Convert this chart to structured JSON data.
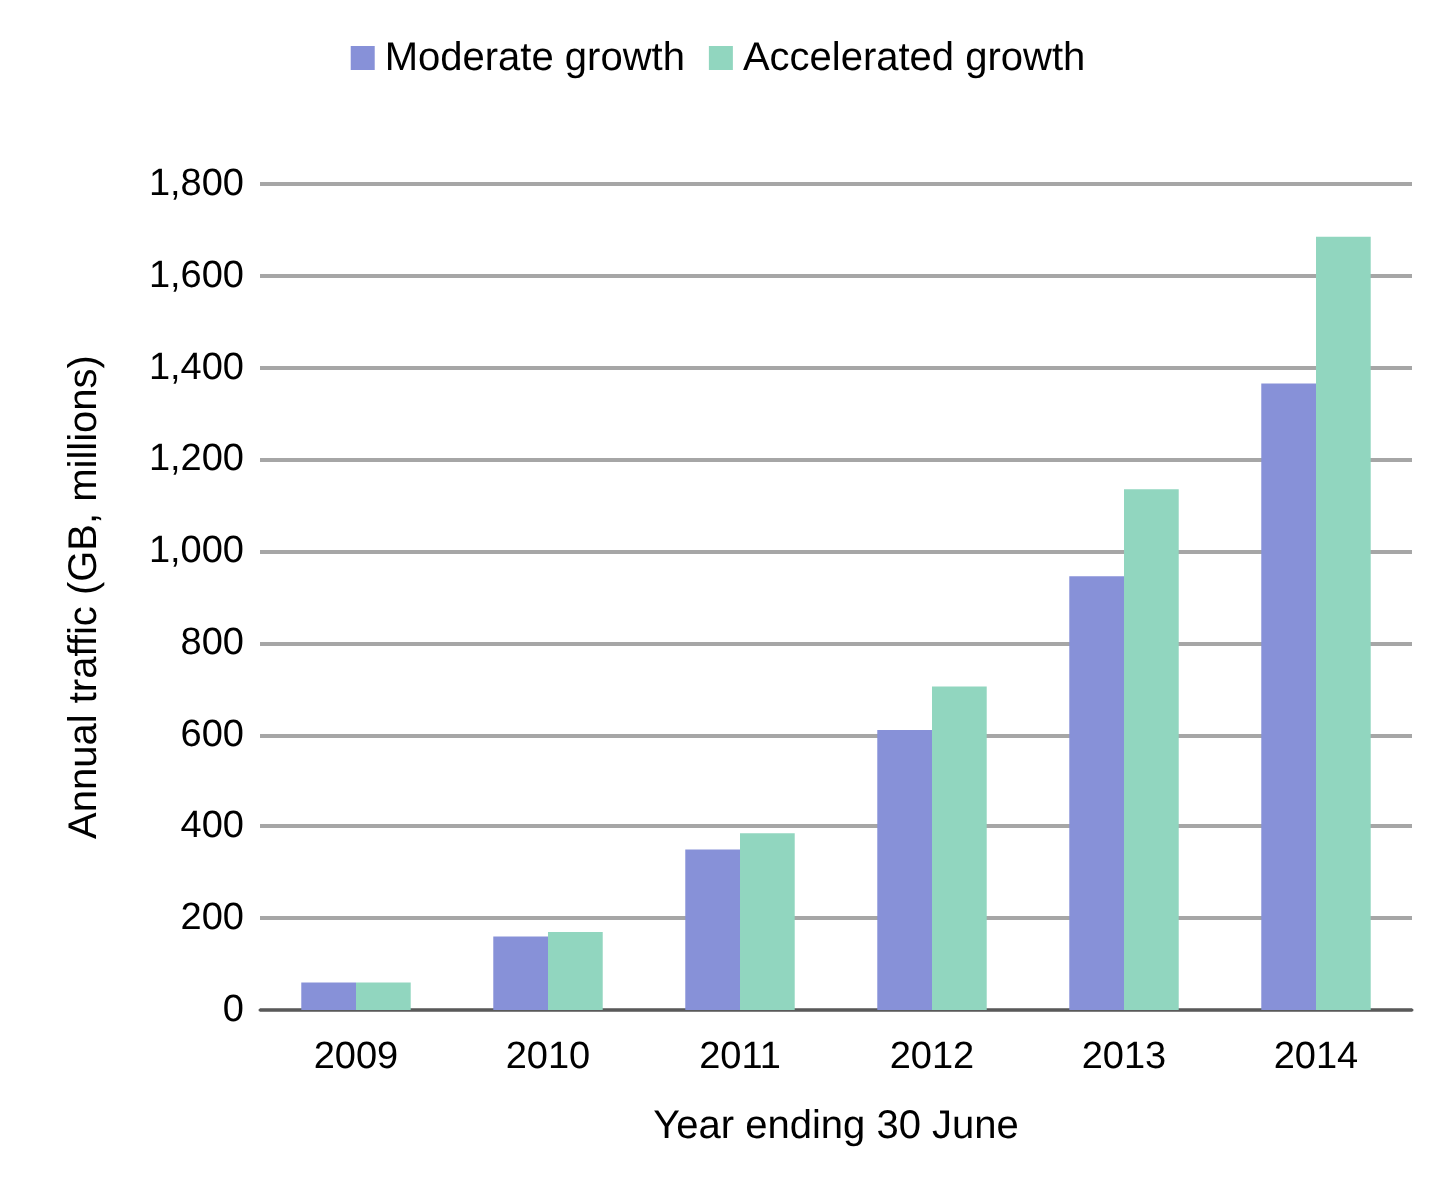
{
  "chart_data": {
    "type": "bar",
    "xlabel": "Year ending 30 June",
    "ylabel": "Annual traffic (GB, millions)",
    "categories": [
      "2009",
      "2010",
      "2011",
      "2012",
      "2013",
      "2014"
    ],
    "series": [
      {
        "name": "Moderate growth",
        "color": "#8791d8",
        "values": [
          60,
          160,
          350,
          610,
          945,
          1365
        ]
      },
      {
        "name": "Accelerated growth",
        "color": "#91d6bf",
        "values": [
          60,
          170,
          385,
          705,
          1135,
          1685
        ]
      }
    ],
    "ylim": [
      0,
      1800
    ],
    "yticks": [
      0,
      200,
      400,
      600,
      800,
      {
        "value": 1000,
        "label": "1,000"
      },
      {
        "value": 1200,
        "label": "1,200"
      },
      {
        "value": 1400,
        "label": "1,400"
      },
      {
        "value": 1600,
        "label": "1,600"
      },
      {
        "value": 1800,
        "label": "1,800"
      }
    ],
    "grid": "y",
    "legend": "top"
  }
}
